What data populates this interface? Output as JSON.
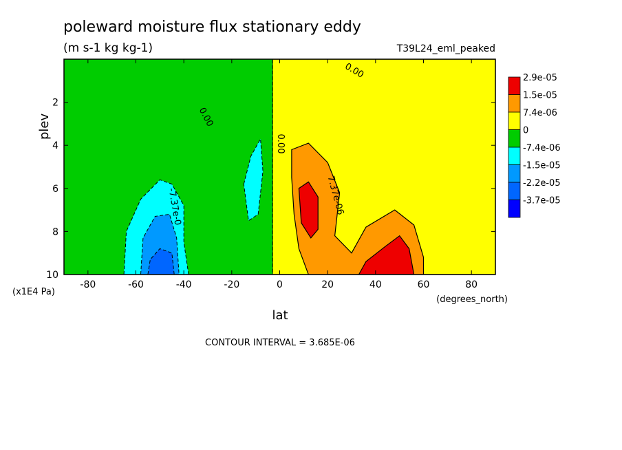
{
  "chart_data": {
    "type": "heatmap",
    "title": "poleward moisture flux stationary eddy",
    "subtitle": "(m s-1 kg kg-1)",
    "run_label": "T39L24_eml_peaked",
    "xlabel": "lat",
    "x_unit": "(degrees_north)",
    "ylabel": "plev",
    "y_unit": "(x1E4 Pa)",
    "xlim": [
      -90,
      90
    ],
    "ylim": [
      10,
      0
    ],
    "x_ticks": [
      "-80",
      "-60",
      "-40",
      "-20",
      "0",
      "20",
      "40",
      "60",
      "80"
    ],
    "y_ticks": [
      "2",
      "4",
      "6",
      "8",
      "10"
    ],
    "contour_interval_text": "CONTOUR INTERVAL = 3.685E-06",
    "contour_labels": [
      "0.00",
      "0.00",
      "0.00",
      "0.00",
      "7.37e-06",
      "-7.37e-0"
    ],
    "colorbar": {
      "labels": [
        "2.9e-05",
        "1.5e-05",
        "7.4e-06",
        "0",
        "-7.4e-06",
        "-1.5e-05",
        "-2.2e-05",
        "-3.7e-05"
      ],
      "colors": [
        "#ee0000",
        "#ff9900",
        "#ffff00",
        "#00cc00",
        "#00ffff",
        "#0099ff",
        "#0066ff",
        "#0000ff"
      ]
    },
    "regions": [
      {
        "name": "positive-yellow",
        "sign": "+",
        "level": "0 to 7.4e-06",
        "color": "#ffff00",
        "outline": [
          [
            -3,
            0
          ],
          [
            90,
            0
          ],
          [
            90,
            10
          ],
          [
            -3,
            10
          ],
          [
            -3,
            0
          ]
        ]
      },
      {
        "name": "negative-green",
        "sign": "-",
        "level": "-7.4e-06 to 0",
        "color": "#00cc00",
        "outline": [
          [
            -90,
            0
          ],
          [
            -3,
            0
          ],
          [
            -3,
            10
          ],
          [
            -90,
            10
          ]
        ]
      },
      {
        "name": "nh-orange",
        "sign": "+",
        "level": "7.4e-06 to 1.5e-05",
        "color": "#ff9900",
        "outline": [
          [
            5,
            4.2
          ],
          [
            12,
            3.9
          ],
          [
            20,
            4.8
          ],
          [
            25,
            6.2
          ],
          [
            23,
            8.2
          ],
          [
            30,
            9.0
          ],
          [
            36,
            7.8
          ],
          [
            48,
            7.0
          ],
          [
            56,
            7.7
          ],
          [
            60,
            9.2
          ],
          [
            60,
            10
          ],
          [
            12,
            10
          ],
          [
            8,
            8.8
          ],
          [
            6,
            7.2
          ],
          [
            5,
            5.5
          ]
        ]
      },
      {
        "name": "nh-red-upper",
        "sign": "+",
        "level": "1.5e-05 to 2.9e-05",
        "color": "#ee0000",
        "outline": [
          [
            8,
            6.0
          ],
          [
            12,
            5.7
          ],
          [
            16,
            6.4
          ],
          [
            16,
            7.9
          ],
          [
            13,
            8.3
          ],
          [
            9,
            7.6
          ]
        ]
      },
      {
        "name": "nh-red-lower",
        "sign": "+",
        "level": "1.5e-05 to 2.9e-05",
        "color": "#ee0000",
        "outline": [
          [
            33,
            10
          ],
          [
            36,
            9.4
          ],
          [
            44,
            8.7
          ],
          [
            50,
            8.2
          ],
          [
            54,
            8.8
          ],
          [
            56,
            10
          ]
        ]
      },
      {
        "name": "sh-cyan-main",
        "sign": "-",
        "level": "-1.5e-05 to -7.4e-06",
        "color": "#00ffff",
        "outline": [
          [
            -65,
            10
          ],
          [
            -64,
            8.0
          ],
          [
            -58,
            6.5
          ],
          [
            -50,
            5.6
          ],
          [
            -45,
            5.8
          ],
          [
            -40,
            6.8
          ],
          [
            -40,
            8.5
          ],
          [
            -38,
            10
          ]
        ]
      },
      {
        "name": "sh-blue-main",
        "sign": "-",
        "level": "-2.2e-05 to -1.5e-05",
        "color": "#0099ff",
        "outline": [
          [
            -58,
            10
          ],
          [
            -57,
            8.3
          ],
          [
            -52,
            7.3
          ],
          [
            -46,
            7.2
          ],
          [
            -43,
            8.3
          ],
          [
            -42,
            10
          ]
        ]
      },
      {
        "name": "sh-darkblue-core",
        "sign": "-",
        "level": "-3.7e-05 to -2.2e-05",
        "color": "#0066ff",
        "outline": [
          [
            -55,
            10
          ],
          [
            -54,
            9.3
          ],
          [
            -50,
            8.8
          ],
          [
            -45,
            9.0
          ],
          [
            -44,
            10
          ]
        ]
      },
      {
        "name": "sh-cyan-small",
        "sign": "-",
        "level": "-1.5e-05 to -7.4e-06",
        "color": "#00ffff",
        "outline": [
          [
            -15,
            5.8
          ],
          [
            -12,
            4.5
          ],
          [
            -8,
            3.7
          ],
          [
            -7,
            5.2
          ],
          [
            -9,
            7.2
          ],
          [
            -13,
            7.5
          ]
        ]
      }
    ]
  }
}
